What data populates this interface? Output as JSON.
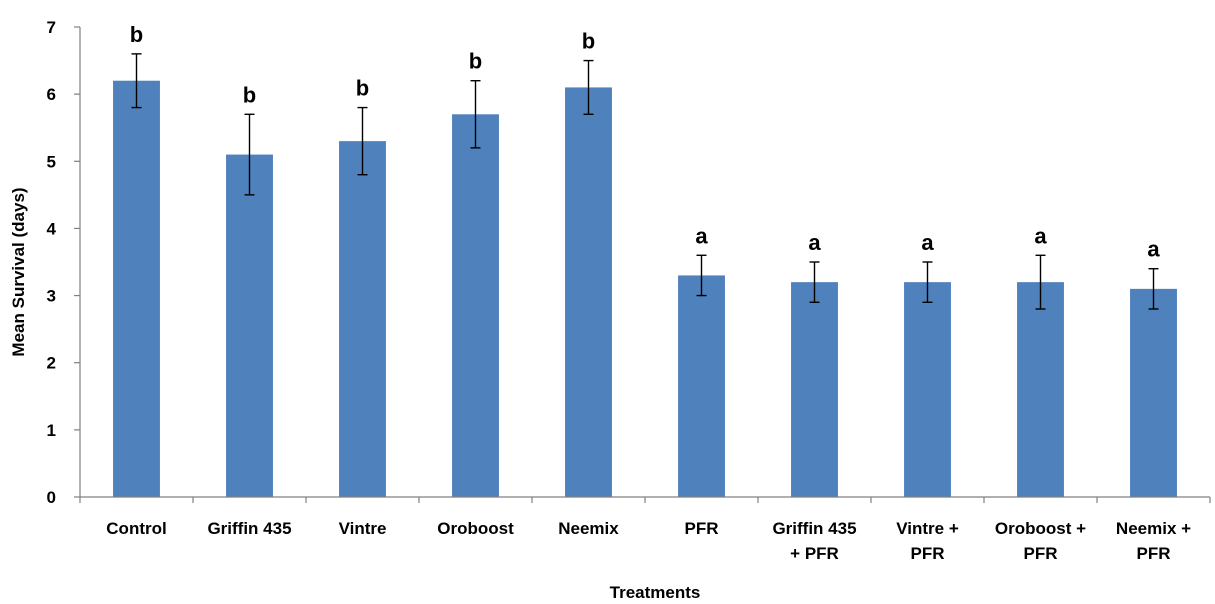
{
  "chart_data": {
    "type": "bar",
    "categories": [
      [
        "Control"
      ],
      [
        "Griffin 435"
      ],
      [
        "Vintre"
      ],
      [
        "Oroboost"
      ],
      [
        "Neemix"
      ],
      [
        "PFR"
      ],
      [
        "Griffin 435",
        "+ PFR"
      ],
      [
        "Vintre +",
        "PFR"
      ],
      [
        "Oroboost +",
        "PFR"
      ],
      [
        "Neemix +",
        "PFR"
      ]
    ],
    "values": [
      6.2,
      5.1,
      5.3,
      5.7,
      6.1,
      3.3,
      3.2,
      3.2,
      3.2,
      3.1
    ],
    "error_low": [
      5.8,
      4.5,
      4.8,
      5.2,
      5.7,
      3.0,
      2.9,
      2.9,
      2.8,
      2.8
    ],
    "error_high": [
      6.6,
      5.7,
      5.8,
      6.2,
      6.5,
      3.6,
      3.5,
      3.5,
      3.6,
      3.4
    ],
    "significance_letters": [
      "b",
      "b",
      "b",
      "b",
      "b",
      "a",
      "a",
      "a",
      "a",
      "a"
    ],
    "xlabel": "Treatments",
    "ylabel": "Mean Survival (days)",
    "ylim": [
      0,
      7
    ],
    "yticks": [
      0,
      1,
      2,
      3,
      4,
      5,
      6,
      7
    ],
    "grid": false,
    "bar_color": "#4F81BD",
    "error_bar_color": "#000000"
  }
}
